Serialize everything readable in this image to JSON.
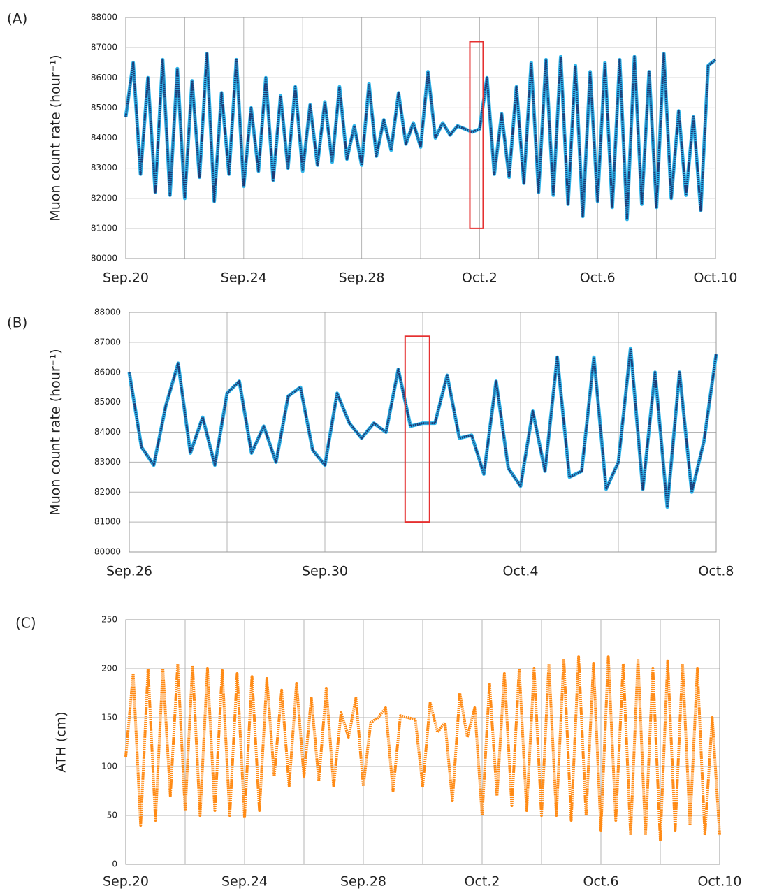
{
  "chart_data": [
    {
      "type": "line",
      "label": "(A)",
      "y_label": "Muon count rate (hour⁻¹)",
      "x": [
        0,
        0.25,
        0.5,
        0.75,
        1,
        1.25,
        1.5,
        1.75,
        2,
        2.25,
        2.5,
        2.75,
        3,
        3.25,
        3.5,
        3.75,
        4,
        4.25,
        4.5,
        4.75,
        5,
        5.25,
        5.5,
        5.75,
        6,
        6.25,
        6.5,
        6.75,
        7,
        7.25,
        7.5,
        7.75,
        8,
        8.25,
        8.5,
        8.75,
        9,
        9.25,
        9.5,
        9.75,
        10,
        10.25,
        10.5,
        10.75,
        11,
        11.25,
        11.5,
        11.75,
        12,
        12.25,
        12.5,
        12.75,
        13,
        13.25,
        13.5,
        13.75,
        14,
        14.25,
        14.5,
        14.75,
        15,
        15.25,
        15.5,
        15.75,
        16,
        16.25,
        16.5,
        16.75,
        17,
        17.25,
        17.5,
        17.75,
        18,
        18.25,
        18.5,
        18.75,
        19,
        19.25,
        19.5,
        19.75,
        20
      ],
      "values": [
        84700,
        86500,
        82800,
        86000,
        82200,
        86600,
        82100,
        86300,
        82000,
        85900,
        82700,
        86800,
        81900,
        85500,
        82800,
        86600,
        82400,
        85000,
        82900,
        86000,
        82600,
        85400,
        83000,
        85700,
        82900,
        85100,
        83100,
        85200,
        83200,
        85700,
        83300,
        84400,
        83100,
        85800,
        83400,
        84600,
        83600,
        85500,
        83800,
        84500,
        83700,
        86200,
        84000,
        84500,
        84100,
        84400,
        84300,
        84200,
        84300,
        86000,
        82800,
        84800,
        82700,
        85700,
        82500,
        86500,
        82200,
        86600,
        82100,
        86700,
        81800,
        86400,
        81400,
        86200,
        81900,
        86500,
        81700,
        86600,
        81300,
        86700,
        81800,
        86200,
        81700,
        86800,
        82000,
        84900,
        82100,
        84700,
        81600,
        86400,
        86600
      ],
      "color": "#1c3c78",
      "edge_color": "#2fb5ea",
      "xlim": [
        0,
        20
      ],
      "xticks": [
        {
          "value": 0,
          "label": "Sep.20"
        },
        {
          "value": 4,
          "label": "Sep.24"
        },
        {
          "value": 8,
          "label": "Sep.28"
        },
        {
          "value": 12,
          "label": "Oct.2"
        },
        {
          "value": 16,
          "label": "Oct.6"
        },
        {
          "value": 20,
          "label": "Oct.10"
        }
      ],
      "xgrid": [
        2,
        6,
        10,
        14,
        18
      ],
      "ylim": [
        80000,
        88000
      ],
      "yticks": [
        80000,
        81000,
        82000,
        83000,
        84000,
        85000,
        86000,
        87000,
        88000
      ],
      "grid": true,
      "highlight_box": {
        "x": [
          11.67,
          12.12
        ],
        "y": [
          81000,
          87200
        ],
        "color": "#e53030"
      }
    },
    {
      "type": "line",
      "label": "(B)",
      "y_label": "Muon count rate (hour⁻¹)",
      "x": [
        0,
        0.25,
        0.5,
        0.75,
        1,
        1.25,
        1.5,
        1.75,
        2,
        2.25,
        2.5,
        2.75,
        3,
        3.25,
        3.5,
        3.75,
        4,
        4.25,
        4.5,
        4.75,
        5,
        5.25,
        5.5,
        5.75,
        6,
        6.25,
        6.5,
        6.75,
        7,
        7.25,
        7.5,
        7.75,
        8,
        8.25,
        8.5,
        8.75,
        9,
        9.25,
        9.5,
        9.75,
        10,
        10.25,
        10.5,
        10.75,
        11,
        11.25,
        11.5,
        11.75,
        12
      ],
      "values": [
        86000,
        83500,
        82900,
        84900,
        86300,
        83300,
        84500,
        82900,
        85300,
        85700,
        83300,
        84200,
        83000,
        85200,
        85500,
        83400,
        82900,
        85300,
        84300,
        83800,
        84300,
        84000,
        86100,
        84200,
        84300,
        84300,
        85900,
        83800,
        83900,
        82600,
        85700,
        82800,
        82200,
        84700,
        82700,
        86500,
        82500,
        82700,
        86500,
        82100,
        83000,
        86800,
        82100,
        86000,
        81500,
        86000,
        82000,
        83700,
        86600
      ],
      "color": "#1c3c78",
      "edge_color": "#2fb5ea",
      "xlim": [
        0,
        12
      ],
      "xticks": [
        {
          "value": 0,
          "label": "Sep.26"
        },
        {
          "value": 4,
          "label": "Sep.30"
        },
        {
          "value": 8,
          "label": "Oct.4"
        },
        {
          "value": 12,
          "label": "Oct.8"
        }
      ],
      "xgrid": [
        2,
        6,
        10
      ],
      "ylim": [
        80000,
        88000
      ],
      "yticks": [
        80000,
        81000,
        82000,
        83000,
        84000,
        85000,
        86000,
        87000,
        88000
      ],
      "grid": true,
      "highlight_box": {
        "x": [
          5.64,
          6.14
        ],
        "y": [
          81000,
          87200
        ],
        "color": "#e53030"
      }
    },
    {
      "type": "line",
      "label": "(C)",
      "y_label": "ATH (cm)",
      "x": [
        0,
        0.25,
        0.5,
        0.75,
        1,
        1.25,
        1.5,
        1.75,
        2,
        2.25,
        2.5,
        2.75,
        3,
        3.25,
        3.5,
        3.75,
        4,
        4.25,
        4.5,
        4.75,
        5,
        5.25,
        5.5,
        5.75,
        6,
        6.25,
        6.5,
        6.75,
        7,
        7.25,
        7.5,
        7.75,
        8,
        8.25,
        8.5,
        8.75,
        9,
        9.25,
        9.5,
        9.75,
        10,
        10.25,
        10.5,
        10.75,
        11,
        11.25,
        11.5,
        11.75,
        12,
        12.25,
        12.5,
        12.75,
        13,
        13.25,
        13.5,
        13.75,
        14,
        14.25,
        14.5,
        14.75,
        15,
        15.25,
        15.5,
        15.75,
        16,
        16.25,
        16.5,
        16.75,
        17,
        17.25,
        17.5,
        17.75,
        18,
        18.25,
        18.5,
        18.75,
        19,
        19.25,
        19.5,
        19.75,
        20
      ],
      "values": [
        110,
        195,
        40,
        200,
        45,
        200,
        70,
        205,
        55,
        203,
        50,
        200,
        55,
        198,
        50,
        195,
        48,
        192,
        55,
        190,
        90,
        178,
        80,
        185,
        90,
        170,
        85,
        180,
        80,
        155,
        130,
        170,
        80,
        145,
        150,
        160,
        75,
        152,
        150,
        148,
        80,
        165,
        135,
        145,
        65,
        175,
        130,
        160,
        50,
        185,
        70,
        195,
        60,
        200,
        55,
        200,
        50,
        205,
        50,
        210,
        45,
        212,
        50,
        205,
        35,
        212,
        45,
        205,
        30,
        210,
        30,
        200,
        25,
        208,
        35,
        205,
        40,
        200,
        30,
        150,
        30
      ],
      "color": "#ff8a14",
      "xlim": [
        0,
        20
      ],
      "xticks": [
        {
          "value": 0,
          "label": "Sep.20"
        },
        {
          "value": 4,
          "label": "Sep.24"
        },
        {
          "value": 8,
          "label": "Sep.28"
        },
        {
          "value": 12,
          "label": "Oct.2"
        },
        {
          "value": 16,
          "label": "Oct.6"
        },
        {
          "value": 20,
          "label": "Oct.10"
        }
      ],
      "xgrid": [
        2,
        6,
        10,
        14,
        18
      ],
      "ylim": [
        0,
        250
      ],
      "yticks": [
        0,
        50,
        100,
        150,
        200,
        250
      ],
      "grid": true
    }
  ]
}
